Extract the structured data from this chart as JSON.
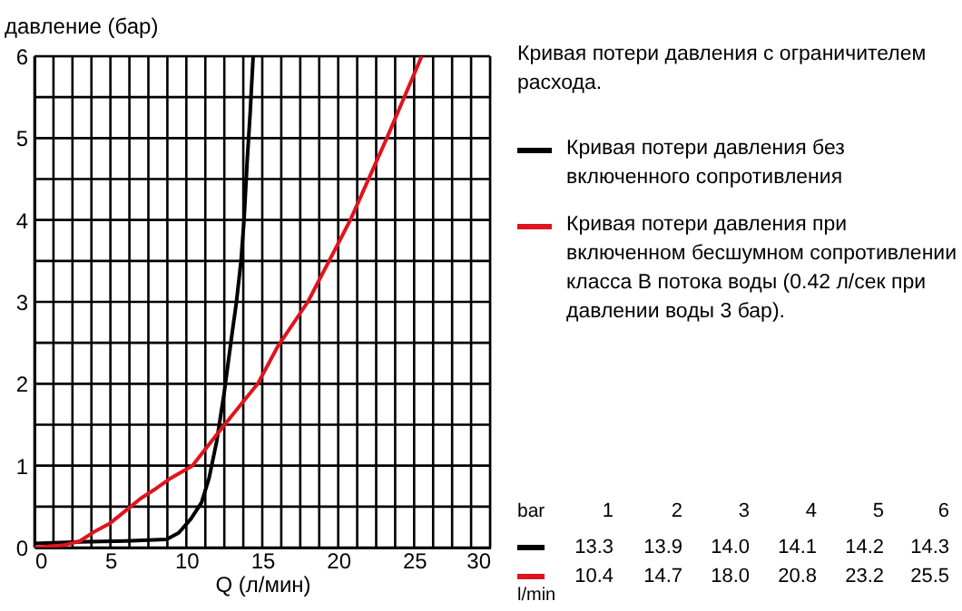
{
  "chart_data": {
    "type": "line",
    "title": "Кривая потери давления с ограничителем расхода.",
    "xlabel": "Q (л/мин)",
    "ylabel": "давление (бар)",
    "xlim": [
      0,
      30
    ],
    "ylim": [
      0,
      6
    ],
    "xticks": [
      0,
      {
        "value": 1.25,
        "label": null
      },
      {
        "value": 2.5,
        "label": null
      },
      {
        "value": 3.75,
        "label": null
      },
      5,
      {
        "value": 6.25,
        "label": null
      },
      {
        "value": 7.5,
        "label": null
      },
      {
        "value": 8.75,
        "label": null
      },
      10,
      {
        "value": 11.25,
        "label": null
      },
      {
        "value": 12.5,
        "label": null
      },
      {
        "value": 13.75,
        "label": null
      },
      15,
      {
        "value": 16.25,
        "label": null
      },
      {
        "value": 17.5,
        "label": null
      },
      {
        "value": 18.75,
        "label": null
      },
      20,
      {
        "value": 21.25,
        "label": null
      },
      {
        "value": 22.5,
        "label": null
      },
      {
        "value": 23.75,
        "label": null
      },
      25,
      {
        "value": 26.25,
        "label": null
      },
      {
        "value": 27.5,
        "label": null
      },
      {
        "value": 28.75,
        "label": null
      },
      30
    ],
    "yticks": [
      0,
      {
        "value": 0.5,
        "label": null
      },
      1,
      {
        "value": 1.5,
        "label": null
      },
      2,
      {
        "value": 2.5,
        "label": null
      },
      3,
      {
        "value": 3.5,
        "label": null
      },
      4,
      {
        "value": 4.5,
        "label": null
      },
      5,
      {
        "value": 5.5,
        "label": null
      },
      6
    ],
    "grid": true,
    "legend": "right",
    "marker": "none",
    "line_style": "solid",
    "series": [
      {
        "name": "Кривая потери давления без включенного сопротивления",
        "color": "#000000",
        "x": [
          0,
          3,
          6,
          8.7,
          9.5,
          10.3,
          11,
          11.5,
          12,
          12.5,
          13,
          13.3,
          13.6,
          13.8,
          14.0,
          14.2,
          14.4
        ],
        "values": [
          0.05,
          0.07,
          0.08,
          0.1,
          0.18,
          0.35,
          0.55,
          0.85,
          1.3,
          1.9,
          2.6,
          3.0,
          3.5,
          4.0,
          4.7,
          5.3,
          6.0
        ]
      },
      {
        "name": "Кривая потери давления при включенном бесшумном сопротивлении класса В потока воды (0.42 л/сек при давлении воды 3 бар).",
        "color": "#e0141e",
        "x": [
          0,
          2,
          3,
          4,
          5,
          6,
          7,
          8,
          9,
          10.4,
          12.3,
          14.7,
          16,
          18,
          20.8,
          23.2,
          25.5
        ],
        "values": [
          0,
          0.03,
          0.08,
          0.2,
          0.3,
          0.45,
          0.6,
          0.72,
          0.85,
          1.0,
          1.45,
          2.0,
          2.45,
          3.0,
          4.0,
          5.0,
          6.0
        ]
      }
    ],
    "annotations": [
      "bar",
      "1",
      "2",
      "3",
      "4",
      "5",
      "6",
      "13.3",
      "13.9",
      "14.0",
      "14.1",
      "14.2",
      "14.3",
      "10.4",
      "14.7",
      "18.0",
      "20.8",
      "23.2",
      "25.5",
      "l/min"
    ]
  }
}
